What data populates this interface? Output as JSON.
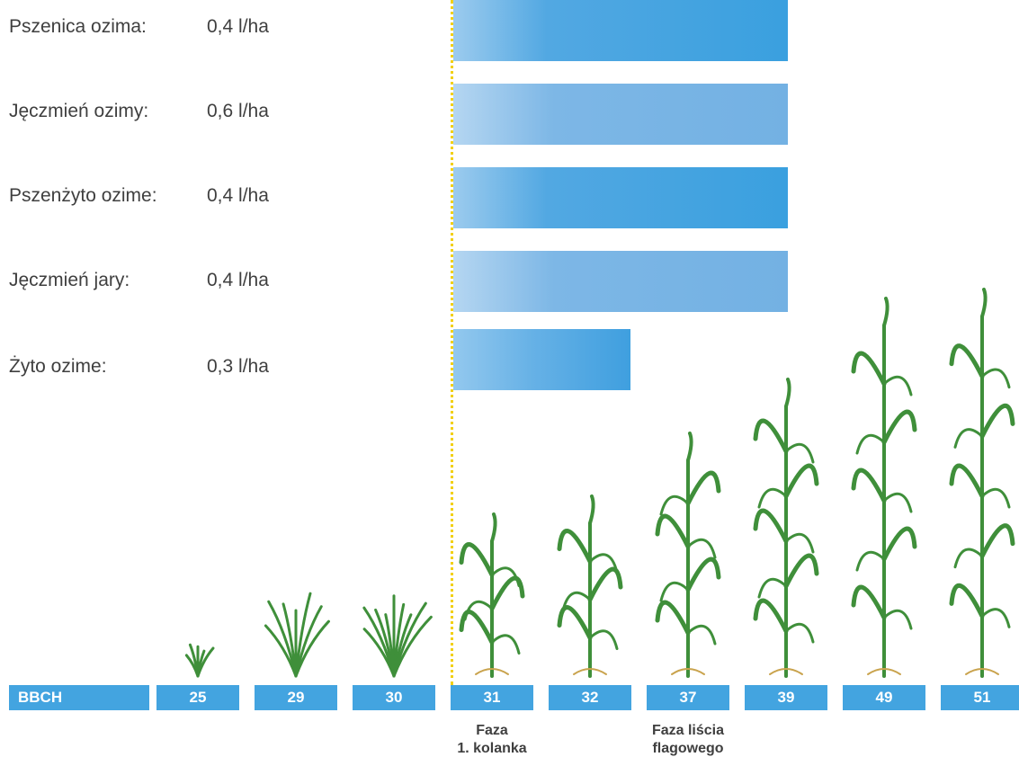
{
  "chart_data": {
    "type": "bar",
    "orientation": "horizontal",
    "categories": [
      "Pszenica ozima:",
      "Jęczmień ozimy:",
      "Pszenżyto ozime:",
      "Jęczmień jary:",
      "Żyto ozime:"
    ],
    "doses": [
      "0,4 l/ha",
      "0,6 l/ha",
      "0,4 l/ha",
      "0,4 l/ha",
      "0,3 l/ha"
    ],
    "x_axis_label": "BBCH",
    "x_ticks": [
      "25",
      "29",
      "30",
      "31",
      "32",
      "37",
      "39",
      "49",
      "51"
    ],
    "ranges": [
      {
        "start": "31",
        "end": "39",
        "shade": "dark"
      },
      {
        "start": "31",
        "end": "39",
        "shade": "light"
      },
      {
        "start": "31",
        "end": "39",
        "shade": "dark"
      },
      {
        "start": "31",
        "end": "39",
        "shade": "light"
      },
      {
        "start": "31",
        "end": "32",
        "shade": "short"
      }
    ],
    "marker_at": "31",
    "phase_labels": [
      {
        "at": "31",
        "line1": "Faza",
        "line2": "1. kolanka"
      },
      {
        "at": "37",
        "line1": "Faza liścia",
        "line2": "flagowego"
      }
    ],
    "colors": {
      "bar_dark": "#3aa0df",
      "bar_light": "#73b1e3",
      "scale": "#43a4e0",
      "marker": "#f2d013",
      "plant": "#3f8f3a"
    }
  }
}
